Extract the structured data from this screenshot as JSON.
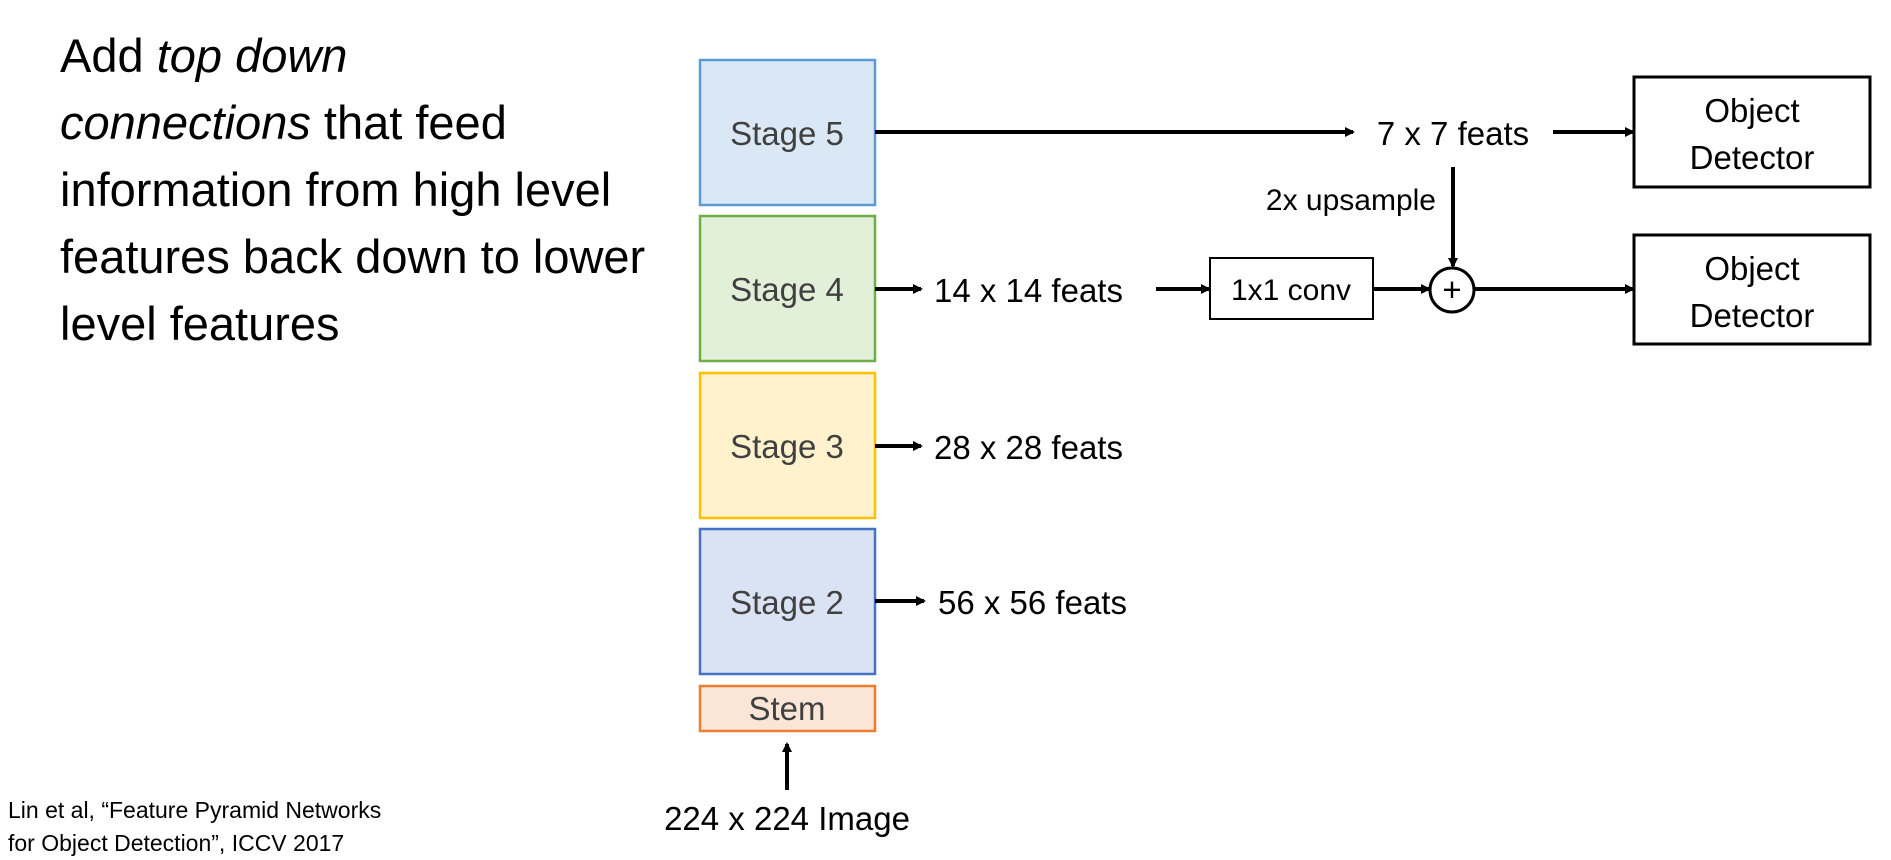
{
  "description": {
    "part1": "Add ",
    "emph1": "top down",
    "emph2": "connections",
    "part2": " that feed information from high level features back down to lower level features"
  },
  "citation": {
    "line1": "Lin et al, “Feature Pyramid Networks",
    "line2": "for Object Detection”, ICCV 2017"
  },
  "diagram": {
    "stages": [
      {
        "label": "Stage 5",
        "fill": "#dae8f5",
        "stroke": "#5b9bd5"
      },
      {
        "label": "Stage 4",
        "fill": "#e2efd9",
        "stroke": "#70ad47"
      },
      {
        "label": "Stage 3",
        "fill": "#fff2cc",
        "stroke": "#ffc000"
      },
      {
        "label": "Stage 2",
        "fill": "#dae3f3",
        "stroke": "#4472c4"
      },
      {
        "label": "Stem",
        "fill": "#fbe5d6",
        "stroke": "#ed7d31"
      }
    ],
    "input_label": "224 x 224 Image",
    "feats": {
      "f7": "7 x 7 feats",
      "f14": "14 x 14 feats",
      "f28": "28 x 28 feats",
      "f56": "56 x 56 feats"
    },
    "upsample_label": "2x upsample",
    "conv_label": "1x1 conv",
    "plus_symbol": "+",
    "detector": {
      "line1": "Object",
      "line2": "Detector"
    }
  }
}
